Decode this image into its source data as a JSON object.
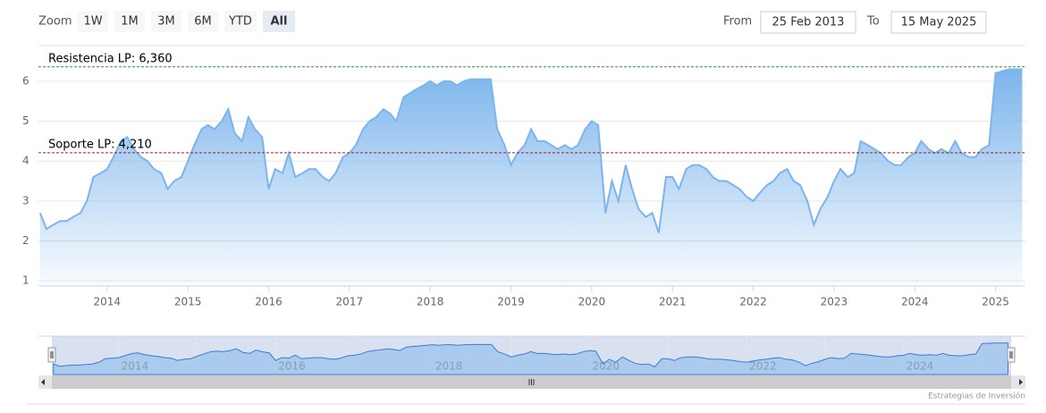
{
  "range_selector": {
    "zoom_label": "Zoom",
    "buttons": [
      "1W",
      "1M",
      "3M",
      "6M",
      "YTD",
      "All"
    ],
    "selected": 5,
    "from_label": "From",
    "from": "25 Feb 2013",
    "to_label": "To",
    "to": "15 May 2025"
  },
  "credit": "Estrategias de Inversión",
  "chart_data": {
    "type": "area",
    "color": "#7cb5ec",
    "x": [
      2013.17,
      2013.25,
      2013.33,
      2013.42,
      2013.5,
      2013.58,
      2013.67,
      2013.75,
      2013.83,
      2013.92,
      2014.0,
      2014.08,
      2014.17,
      2014.25,
      2014.33,
      2014.42,
      2014.5,
      2014.58,
      2014.67,
      2014.75,
      2014.83,
      2014.92,
      2015.0,
      2015.08,
      2015.17,
      2015.25,
      2015.33,
      2015.42,
      2015.5,
      2015.58,
      2015.67,
      2015.75,
      2015.83,
      2015.92,
      2016.0,
      2016.08,
      2016.17,
      2016.25,
      2016.33,
      2016.42,
      2016.5,
      2016.58,
      2016.67,
      2016.75,
      2016.83,
      2016.92,
      2017.0,
      2017.08,
      2017.17,
      2017.25,
      2017.33,
      2017.42,
      2017.5,
      2017.58,
      2017.67,
      2017.75,
      2017.83,
      2017.92,
      2018.0,
      2018.08,
      2018.17,
      2018.25,
      2018.33,
      2018.42,
      2018.5,
      2018.58,
      2018.67,
      2018.75,
      2018.83,
      2018.92,
      2019.0,
      2019.08,
      2019.17,
      2019.25,
      2019.33,
      2019.42,
      2019.5,
      2019.58,
      2019.67,
      2019.75,
      2019.83,
      2019.92,
      2020.0,
      2020.08,
      2020.17,
      2020.25,
      2020.33,
      2020.42,
      2020.5,
      2020.58,
      2020.67,
      2020.75,
      2020.83,
      2020.92,
      2021.0,
      2021.08,
      2021.17,
      2021.25,
      2021.33,
      2021.42,
      2021.5,
      2021.58,
      2021.67,
      2021.75,
      2021.83,
      2021.92,
      2022.0,
      2022.08,
      2022.17,
      2022.25,
      2022.33,
      2022.42,
      2022.5,
      2022.58,
      2022.67,
      2022.75,
      2022.83,
      2022.92,
      2023.0,
      2023.08,
      2023.17,
      2023.25,
      2023.33,
      2023.42,
      2023.5,
      2023.58,
      2023.67,
      2023.75,
      2023.83,
      2023.92,
      2024.0,
      2024.08,
      2024.17,
      2024.25,
      2024.33,
      2024.42,
      2024.5,
      2024.58,
      2024.67,
      2024.75,
      2024.83,
      2024.92,
      2025.0,
      2025.08,
      2025.17,
      2025.25,
      2025.33
    ],
    "values": [
      2.7,
      2.3,
      2.4,
      2.5,
      2.5,
      2.6,
      2.7,
      3.0,
      3.6,
      3.7,
      3.8,
      4.1,
      4.5,
      4.6,
      4.3,
      4.1,
      4.0,
      3.8,
      3.7,
      3.3,
      3.5,
      3.6,
      4.0,
      4.4,
      4.8,
      4.9,
      4.8,
      5.0,
      5.3,
      4.7,
      4.5,
      5.1,
      4.8,
      4.6,
      3.3,
      3.8,
      3.7,
      4.2,
      3.6,
      3.7,
      3.8,
      3.8,
      3.6,
      3.5,
      3.7,
      4.1,
      4.2,
      4.4,
      4.8,
      5.0,
      5.1,
      5.3,
      5.2,
      5.0,
      5.6,
      5.7,
      5.8,
      5.9,
      6.0,
      5.9,
      6.0,
      6.0,
      5.9,
      6.0,
      6.05,
      6.05,
      6.05,
      6.05,
      4.8,
      4.4,
      3.9,
      4.2,
      4.4,
      4.8,
      4.5,
      4.5,
      4.4,
      4.3,
      4.4,
      4.3,
      4.4,
      4.8,
      5.0,
      4.9,
      2.7,
      3.5,
      3.0,
      3.9,
      3.3,
      2.8,
      2.6,
      2.7,
      2.2,
      3.6,
      3.6,
      3.3,
      3.8,
      3.9,
      3.9,
      3.8,
      3.6,
      3.5,
      3.5,
      3.4,
      3.3,
      3.1,
      3.0,
      3.2,
      3.4,
      3.5,
      3.7,
      3.8,
      3.5,
      3.4,
      3.0,
      2.4,
      2.8,
      3.1,
      3.5,
      3.8,
      3.6,
      3.7,
      4.5,
      4.4,
      4.3,
      4.2,
      4.0,
      3.9,
      3.9,
      4.1,
      4.2,
      4.5,
      4.3,
      4.2,
      4.3,
      4.2,
      4.5,
      4.2,
      4.1,
      4.1,
      4.3,
      4.4,
      6.2,
      6.25,
      6.3,
      6.3,
      6.3
    ],
    "xlim": [
      2013.15,
      2025.37
    ],
    "xticks": [
      2014,
      2015,
      2016,
      2017,
      2018,
      2019,
      2020,
      2021,
      2022,
      2023,
      2024,
      2025
    ],
    "ylim": [
      0.87,
      6.87
    ],
    "yticks": [
      1,
      2,
      3,
      4,
      5,
      6
    ],
    "grid": true,
    "plot_lines": [
      {
        "value": 6.36,
        "label": "Resistencia LP: 6,360",
        "color": "#2e8b2e"
      },
      {
        "value": 4.21,
        "label": "Soporte LP: 4,210",
        "color": "#a02020"
      }
    ]
  }
}
